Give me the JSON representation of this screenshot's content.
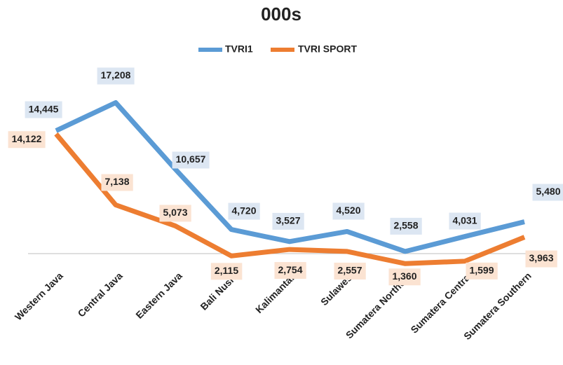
{
  "chart_data": {
    "type": "line",
    "title": "000s",
    "categories": [
      "Western Java",
      "Central Java",
      "Eastern Java",
      "Bali Nusra",
      "Kalimantan",
      "Sulawesi",
      "Sumatera Northern",
      "Sumatera Central",
      "Sumatera Southern"
    ],
    "series": [
      {
        "name": "TVRI1",
        "color": "#5b9bd5",
        "label_color": "#dce6f2",
        "values": [
          14445,
          17208,
          10657,
          4720,
          3527,
          4520,
          2558,
          4031,
          5480
        ],
        "value_labels": [
          "14,445",
          "17,208",
          "10,657",
          "4,720",
          "3,527",
          "4,520",
          "2,558",
          "4,031",
          "5,480"
        ]
      },
      {
        "name": "TVRI SPORT",
        "color": "#ed7d31",
        "label_color": "#fbe3d2",
        "values": [
          14122,
          7138,
          5073,
          2115,
          2754,
          2557,
          1360,
          1599,
          3963
        ],
        "value_labels": [
          "14,122",
          "7,138",
          "5,073",
          "2,115",
          "2,754",
          "2,557",
          "1,360",
          "1,599",
          "3,963"
        ]
      }
    ],
    "ylim": [
      0,
      20000
    ],
    "legend": "top"
  }
}
